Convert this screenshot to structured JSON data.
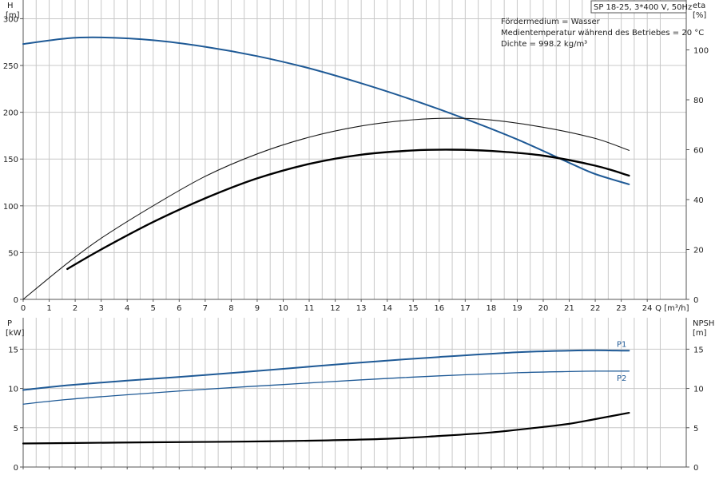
{
  "chart_data": [
    {
      "type": "line",
      "product_label": "SP 18-25, 3*400 V, 50Hz",
      "info_lines": [
        "Fördermedium = Wasser",
        "Medientemperatur während des Betriebes = 20 °C",
        "Dichte = 998.2 kg/m³"
      ],
      "xlabel": "Q [m³/h]",
      "x_ticks": [
        0,
        1,
        2,
        3,
        4,
        5,
        6,
        7,
        8,
        9,
        10,
        11,
        12,
        13,
        14,
        15,
        16,
        17,
        18,
        19,
        20,
        21,
        22,
        23,
        24
      ],
      "xlim": [
        0,
        25.5
      ],
      "y_left": {
        "label_top": "H",
        "label_unit": "[m]",
        "ticks": [
          0,
          50,
          100,
          150,
          200,
          250,
          300
        ],
        "lim": [
          0,
          320
        ]
      },
      "y_right": {
        "label_top": "eta",
        "label_unit": "[%]",
        "ticks": [
          0,
          20,
          40,
          60,
          80,
          100
        ],
        "lim": [
          0,
          120
        ]
      },
      "grid": true,
      "series": [
        {
          "axis": "left",
          "color": "#1f5a96",
          "x": [
            0,
            1.7,
            3,
            5,
            7,
            9,
            11,
            13,
            15,
            17,
            19,
            21,
            22,
            23.3
          ],
          "y": [
            273,
            279,
            280,
            277,
            270,
            260,
            247,
            231,
            213,
            193,
            171,
            146,
            134,
            123
          ]
        },
        {
          "axis": "right",
          "color": "#1a1a1a",
          "x": [
            0,
            1.7,
            3,
            5,
            7,
            9,
            11,
            13,
            15,
            16.5,
            18,
            20,
            22,
            23.3
          ],
          "y": [
            0,
            14.5,
            24.5,
            37.5,
            49.3,
            58.3,
            65,
            69.5,
            72,
            72.6,
            71.9,
            69,
            64.5,
            59.7
          ]
        },
        {
          "axis": "right",
          "color": "#000000",
          "x": [
            1.7,
            3,
            5,
            7,
            9,
            11,
            13,
            15,
            16.5,
            18,
            20,
            22,
            23.3
          ],
          "y": [
            12.2,
            20,
            31,
            40.5,
            48.5,
            54.3,
            58,
            59.7,
            60,
            59.5,
            57.6,
            53.6,
            49.6
          ]
        }
      ]
    },
    {
      "type": "line",
      "xlim": [
        0,
        25.5
      ],
      "y_left": {
        "label_top": "P",
        "label_unit": "[kW]",
        "ticks": [
          0,
          5,
          10,
          15
        ],
        "lim": [
          0,
          19
        ]
      },
      "y_right": {
        "label_top": "NPSH",
        "label_unit": "[m]",
        "ticks": [
          0,
          5,
          10,
          15
        ],
        "lim": [
          0,
          19
        ]
      },
      "grid": true,
      "series": [
        {
          "name": "P1",
          "color": "#1f5a96",
          "x": [
            0,
            1.7,
            4,
            7,
            10,
            13,
            16,
            19,
            21,
            22,
            23.3
          ],
          "y": [
            9.8,
            10.4,
            11.0,
            11.7,
            12.5,
            13.3,
            14.0,
            14.6,
            14.8,
            14.85,
            14.8
          ]
        },
        {
          "name": "P2",
          "color": "#1f5a96",
          "x": [
            0,
            1.7,
            4,
            7,
            10,
            13,
            16,
            19,
            21,
            22,
            23.3
          ],
          "y": [
            8.0,
            8.6,
            9.2,
            9.9,
            10.5,
            11.1,
            11.6,
            12.0,
            12.15,
            12.2,
            12.2
          ]
        },
        {
          "color": "#000000",
          "x": [
            0,
            1.7,
            5,
            8,
            11,
            14,
            16,
            18,
            20,
            21,
            22,
            23.3
          ],
          "y": [
            3.0,
            3.05,
            3.15,
            3.22,
            3.35,
            3.6,
            3.95,
            4.4,
            5.1,
            5.5,
            6.1,
            6.9
          ]
        }
      ]
    }
  ]
}
